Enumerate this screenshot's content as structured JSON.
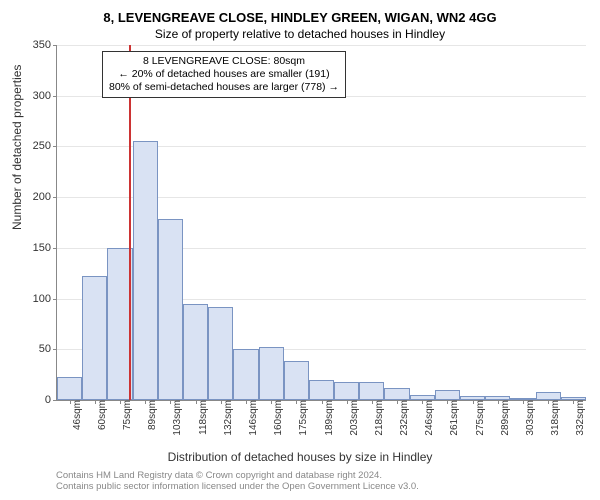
{
  "title_main": "8, LEVENGREAVE CLOSE, HINDLEY GREEN, WIGAN, WN2 4GG",
  "title_sub": "Size of property relative to detached houses in Hindley",
  "ylabel": "Number of detached properties",
  "xlabel": "Distribution of detached houses by size in Hindley",
  "chart": {
    "type": "histogram",
    "background_color": "#ffffff",
    "grid_color": "#e6e6e6",
    "axis_color": "#888888",
    "bar_fill": "#d9e2f3",
    "bar_border": "#7a94c2",
    "marker_line_color": "#cc3333",
    "ylim": [
      0,
      350
    ],
    "ytick_step": 50,
    "yticks": [
      0,
      50,
      100,
      150,
      200,
      250,
      300,
      350
    ],
    "categories": [
      "46sqm",
      "60sqm",
      "75sqm",
      "89sqm",
      "103sqm",
      "118sqm",
      "132sqm",
      "146sqm",
      "160sqm",
      "175sqm",
      "189sqm",
      "203sqm",
      "218sqm",
      "232sqm",
      "246sqm",
      "261sqm",
      "275sqm",
      "289sqm",
      "303sqm",
      "318sqm",
      "332sqm"
    ],
    "values": [
      23,
      122,
      150,
      255,
      178,
      95,
      92,
      50,
      52,
      38,
      20,
      18,
      18,
      12,
      5,
      10,
      4,
      4,
      2,
      8,
      3
    ],
    "marker_category_index": 2.35,
    "title_fontsize": 13,
    "label_fontsize": 12,
    "tick_fontsize": 11
  },
  "infobox": {
    "line1": "8 LEVENGREAVE CLOSE: 80sqm",
    "line2": "← 20% of detached houses are smaller (191)",
    "line3": "80% of semi-detached houses are larger (778) →",
    "border_color": "#333333",
    "background_color": "#ffffff",
    "fontsize": 10.5
  },
  "footer": {
    "line1": "Contains HM Land Registry data © Crown copyright and database right 2024.",
    "line2": "Contains public sector information licensed under the Open Government Licence v3.0.",
    "color": "#888888",
    "fontsize": 9.5
  }
}
